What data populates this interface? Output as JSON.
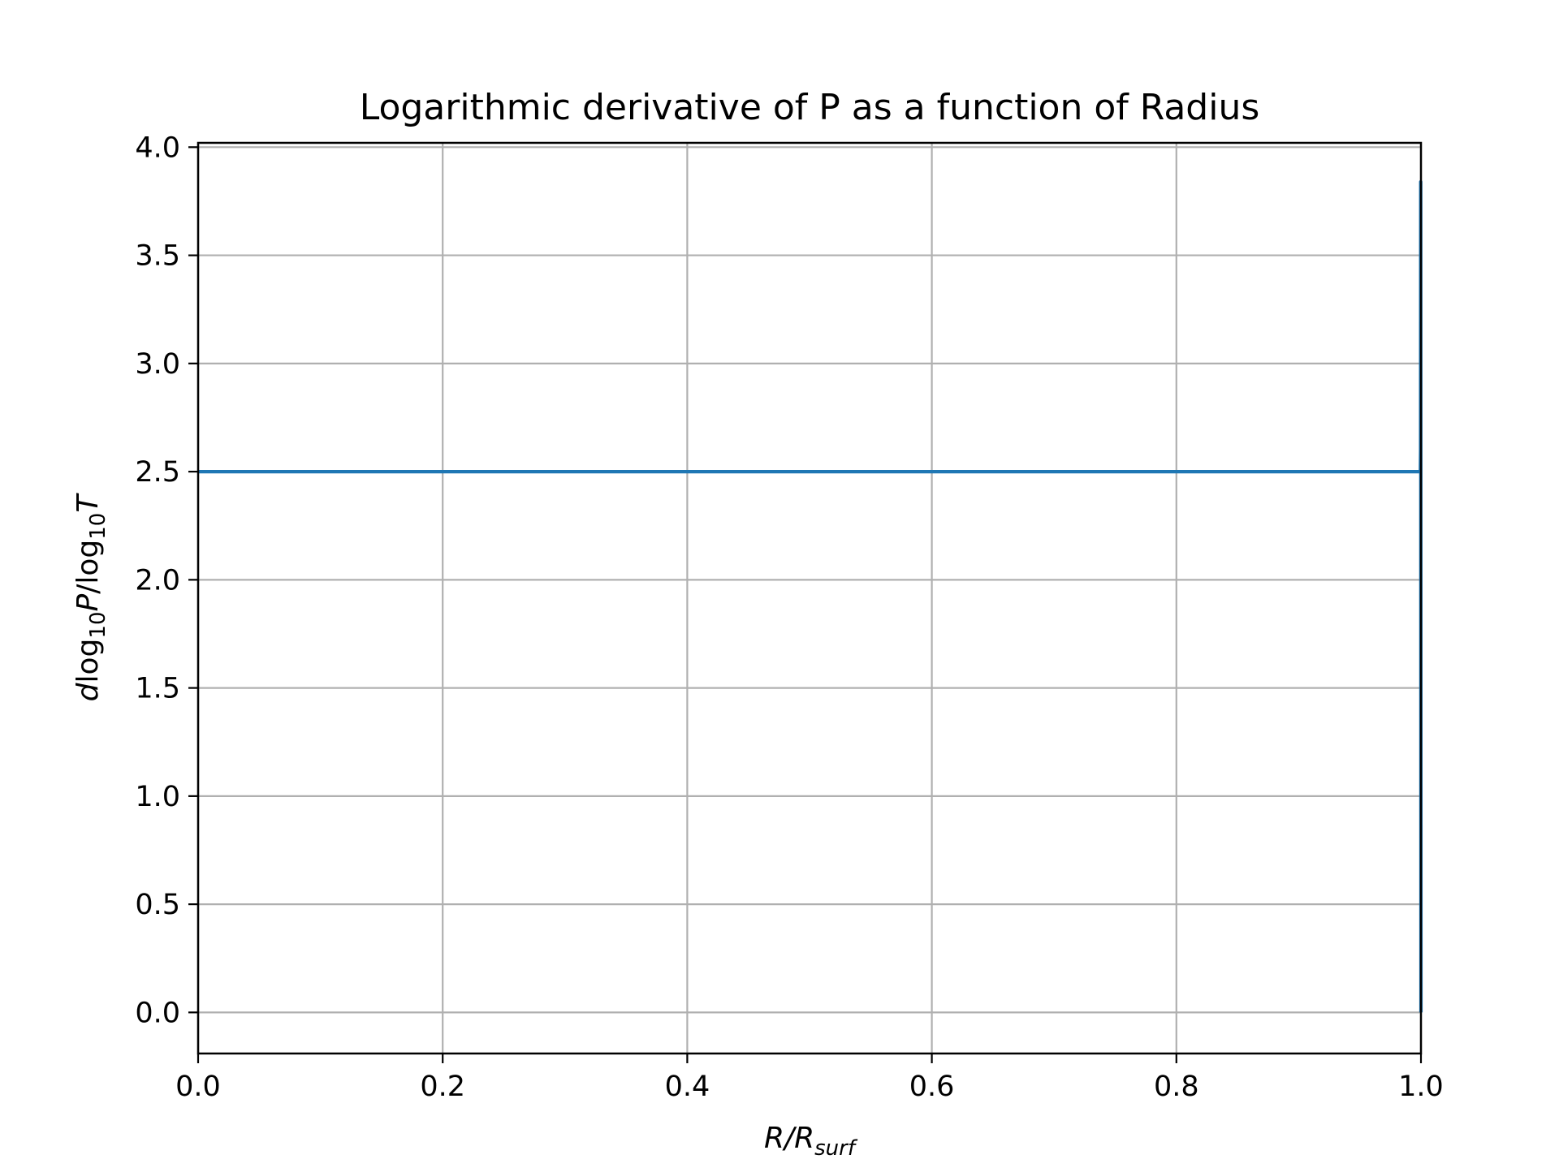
{
  "chart_data": {
    "type": "line",
    "title": "Logarithmic derivative of P as a function of Radius",
    "xlabel": {
      "parts": [
        {
          "text": "R/R",
          "style": "italic"
        },
        {
          "text": "surf",
          "style": "italic-sub"
        }
      ]
    },
    "ylabel": {
      "parts": [
        {
          "text": "d",
          "style": "italic"
        },
        {
          "text": "log",
          "style": "normal"
        },
        {
          "text": "10",
          "style": "sub"
        },
        {
          "text": "P",
          "style": "italic"
        },
        {
          "text": "/log",
          "style": "normal"
        },
        {
          "text": "10",
          "style": "sub"
        },
        {
          "text": "T",
          "style": "italic"
        }
      ]
    },
    "xlim": [
      0.0,
      1.0
    ],
    "ylim": [
      -0.19,
      4.02
    ],
    "xticks": [
      0.0,
      0.2,
      0.4,
      0.6,
      0.8,
      1.0
    ],
    "xtick_labels": [
      "0.0",
      "0.2",
      "0.4",
      "0.6",
      "0.8",
      "1.0"
    ],
    "yticks": [
      0.0,
      0.5,
      1.0,
      1.5,
      2.0,
      2.5,
      3.0,
      3.5,
      4.0
    ],
    "ytick_labels": [
      "0.0",
      "0.5",
      "1.0",
      "1.5",
      "2.0",
      "2.5",
      "3.0",
      "3.5",
      "4.0"
    ],
    "grid": true,
    "series": [
      {
        "color": "#1f77b4",
        "x": [
          0.0,
          0.2,
          0.4,
          0.6,
          0.8,
          0.9995,
          0.9997,
          0.9998,
          1.0
        ],
        "y": [
          2.5,
          2.5,
          2.5,
          2.5,
          2.5,
          2.5,
          2.6,
          3.84,
          0.0
        ]
      }
    ],
    "colors": {
      "grid": "#b0b0b0",
      "axes": "#000000",
      "line": "#1f77b4"
    }
  }
}
